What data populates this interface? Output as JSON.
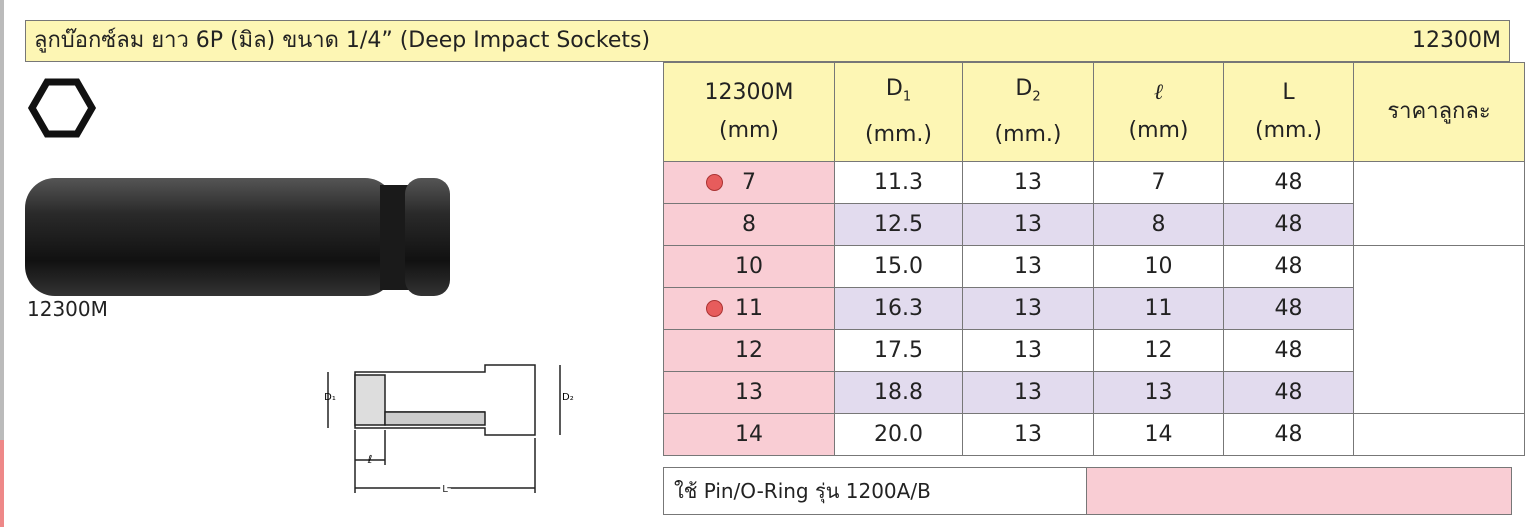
{
  "header": {
    "title": "ลูกบ๊อกซ์ลม ยาว 6P (มิล) ขนาด 1/4” (Deep Impact Sockets)",
    "code": "12300M"
  },
  "product_label": "12300M",
  "drawing": {
    "d1": "D₁",
    "d2": "D₂",
    "l": "ℓ",
    "L": "L"
  },
  "table": {
    "columns": [
      {
        "name": "12300M",
        "unit": "(mm)"
      },
      {
        "name": "D",
        "sub": "1",
        "unit": "(mm.)"
      },
      {
        "name": "D",
        "sub": "2",
        "unit": "(mm.)"
      },
      {
        "name": "ℓ",
        "unit": "(mm)"
      },
      {
        "name": "L",
        "unit": "(mm.)"
      },
      {
        "name": "ราคาลูกละ"
      }
    ],
    "rows": [
      [
        "7",
        "11.3",
        "13",
        "7",
        "48"
      ],
      [
        "8",
        "12.5",
        "13",
        "8",
        "48"
      ],
      [
        "10",
        "15.0",
        "13",
        "10",
        "48"
      ],
      [
        "11",
        "16.3",
        "13",
        "11",
        "48"
      ],
      [
        "12",
        "17.5",
        "13",
        "12",
        "48"
      ],
      [
        "13",
        "18.8",
        "13",
        "13",
        "48"
      ],
      [
        "14",
        "20.0",
        "13",
        "14",
        "48"
      ]
    ]
  },
  "footer": {
    "note": "ใช้ Pin/O-Ring รุ่น 1200A/B"
  }
}
